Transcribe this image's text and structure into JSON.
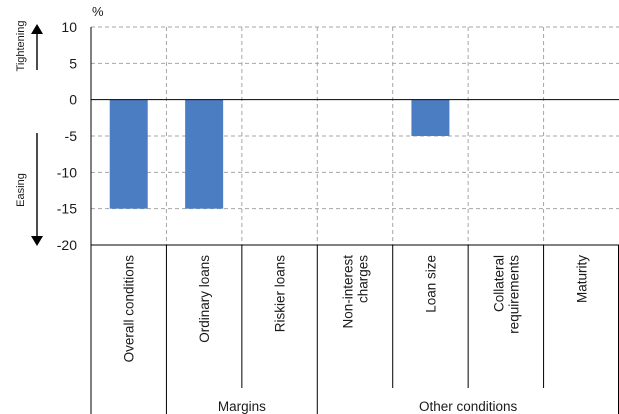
{
  "chart_data": {
    "type": "bar",
    "unit": "%",
    "side_labels": {
      "up": "Tightening",
      "down": "Easing"
    },
    "categories": [
      [
        "Overall conditions"
      ],
      [
        "Ordinary loans"
      ],
      [
        "Riskier loans"
      ],
      [
        "Non-interest",
        "charges"
      ],
      [
        "Loan size"
      ],
      [
        "Collateral",
        "requirements"
      ],
      [
        "Maturity"
      ]
    ],
    "values": [
      -15,
      -15,
      0,
      0,
      -5,
      0,
      0
    ],
    "groups": [
      {
        "label": "Margins",
        "from": 1,
        "to": 2
      },
      {
        "label": "Other conditions",
        "from": 3,
        "to": 6
      }
    ],
    "yticks": [
      "10",
      "5",
      "0",
      "-5",
      "-10",
      "-15",
      "-20"
    ],
    "ylim": [
      -20,
      10
    ],
    "grid": true,
    "colors": {
      "bar": "#4a7dc1",
      "grid": "#a6a6a6",
      "axis": "#000000"
    }
  }
}
